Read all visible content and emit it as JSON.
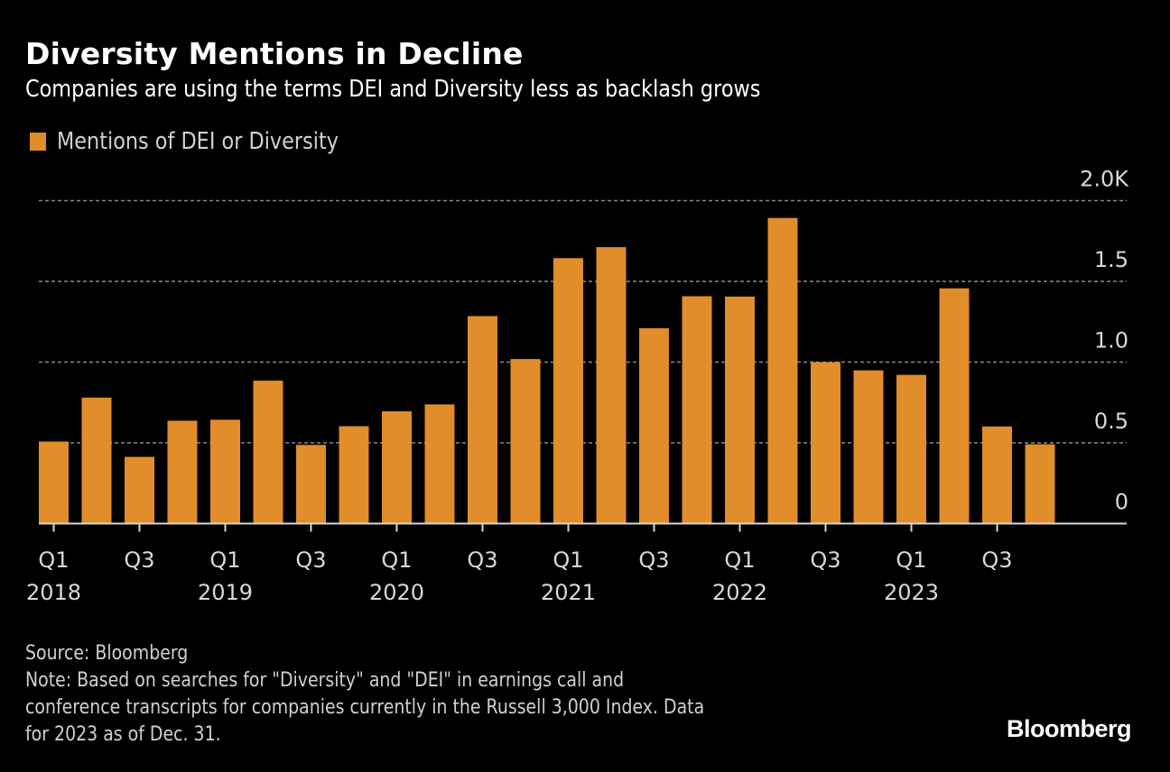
{
  "header": {
    "title": "Diversity Mentions in Decline",
    "subtitle": "Companies are using the terms DEI and Diversity less as backlash grows"
  },
  "legend": {
    "label": "Mentions of DEI or Diversity",
    "icon": "square-swatch-icon"
  },
  "colors": {
    "bar": "#E08D2A",
    "background": "#000000",
    "gridline": "#8a8a8a",
    "axis": "#d8d8d8"
  },
  "chart_data": {
    "type": "bar",
    "title": "Diversity Mentions in Decline",
    "subtitle": "Companies are using the terms DEI and Diversity less as backlash grows",
    "xlabel": "",
    "ylabel": "",
    "legend": [
      "Mentions of DEI or Diversity"
    ],
    "legend_position": "top-left",
    "y_axis_position": "right",
    "grid": true,
    "ylim": [
      0,
      2000
    ],
    "yticks": [
      0,
      500,
      1000,
      1500,
      2000
    ],
    "ytick_labels": [
      "0",
      "0.5",
      "1.0",
      "1.5",
      "2.0K"
    ],
    "categories": [
      "Q1 2018",
      "Q2 2018",
      "Q3 2018",
      "Q4 2018",
      "Q1 2019",
      "Q2 2019",
      "Q3 2019",
      "Q4 2019",
      "Q1 2020",
      "Q2 2020",
      "Q3 2020",
      "Q4 2020",
      "Q1 2021",
      "Q2 2021",
      "Q3 2021",
      "Q4 2021",
      "Q1 2022",
      "Q2 2022",
      "Q3 2022",
      "Q4 2022",
      "Q1 2023",
      "Q2 2023",
      "Q3 2023",
      "Q4 2023"
    ],
    "xtick_labels": [
      {
        "index": 0,
        "line1": "Q1",
        "line2": "2018"
      },
      {
        "index": 2,
        "line1": "Q3",
        "line2": ""
      },
      {
        "index": 4,
        "line1": "Q1",
        "line2": "2019"
      },
      {
        "index": 6,
        "line1": "Q3",
        "line2": ""
      },
      {
        "index": 8,
        "line1": "Q1",
        "line2": "2020"
      },
      {
        "index": 10,
        "line1": "Q3",
        "line2": ""
      },
      {
        "index": 12,
        "line1": "Q1",
        "line2": "2021"
      },
      {
        "index": 14,
        "line1": "Q3",
        "line2": ""
      },
      {
        "index": 16,
        "line1": "Q1",
        "line2": "2022"
      },
      {
        "index": 18,
        "line1": "Q3",
        "line2": ""
      },
      {
        "index": 20,
        "line1": "Q1",
        "line2": "2023"
      },
      {
        "index": 22,
        "line1": "Q3",
        "line2": ""
      }
    ],
    "series": [
      {
        "name": "Mentions of DEI or Diversity",
        "values": [
          508,
          780,
          413,
          637,
          643,
          885,
          487,
          603,
          695,
          738,
          1285,
          1019,
          1644,
          1712,
          1210,
          1408,
          1406,
          1893,
          1000,
          949,
          921,
          1457,
          601,
          491
        ]
      }
    ]
  },
  "footer": {
    "source": "Source: Bloomberg",
    "note_lines": [
      "Note: Based on searches for \"Diversity\" and \"DEI\" in earnings call and",
      "conference transcripts for companies currently in the Russell 3,000 Index. Data",
      "for 2023 as of Dec. 31."
    ],
    "logo": "Bloomberg"
  }
}
